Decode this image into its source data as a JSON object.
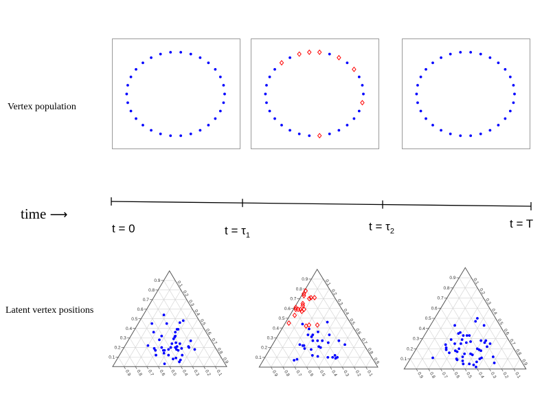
{
  "row_labels": {
    "top": "Vertex population",
    "bottom": "Latent vertex positions"
  },
  "timeline": {
    "axis_label": "time",
    "arrow_icon": "right-arrow",
    "ticks": [
      {
        "label": "t = 0"
      },
      {
        "label": "t = τ",
        "sub": "1"
      },
      {
        "label": "t = τ",
        "sub": "2"
      },
      {
        "label": "t = T"
      }
    ]
  },
  "colors": {
    "normal": "#0000ff",
    "highlight": "#ff0000",
    "grid": "#d0d0d0",
    "axis": "#555555"
  },
  "populations": [
    {
      "count": 30,
      "highlighted_indices": []
    },
    {
      "count": 30,
      "highlighted_indices": [
        3,
        5,
        7,
        8,
        9,
        11,
        23,
        29
      ]
    },
    {
      "count": 30,
      "highlighted_indices": []
    }
  ],
  "ternary_tick_labels": [
    "0.1",
    "0.2",
    "0.3",
    "0.4",
    "0.5",
    "0.6",
    "0.7",
    "0.8",
    "0.9"
  ],
  "chart_data": [
    {
      "type": "scatter",
      "subtype": "ternary",
      "grid": true,
      "points": [
        [
          0.54,
          0.28,
          0.18
        ],
        [
          0.45,
          0.43,
          0.12
        ],
        [
          0.45,
          0.3,
          0.25
        ],
        [
          0.46,
          0.18,
          0.36
        ],
        [
          0.48,
          0.14,
          0.38
        ],
        [
          0.36,
          0.46,
          0.18
        ],
        [
          0.39,
          0.24,
          0.37
        ],
        [
          0.39,
          0.23,
          0.38
        ],
        [
          0.36,
          0.27,
          0.37
        ],
        [
          0.32,
          0.41,
          0.27
        ],
        [
          0.32,
          0.29,
          0.39
        ],
        [
          0.31,
          0.3,
          0.39
        ],
        [
          0.28,
          0.45,
          0.27
        ],
        [
          0.29,
          0.32,
          0.39
        ],
        [
          0.27,
          0.18,
          0.55
        ],
        [
          0.22,
          0.58,
          0.2
        ],
        [
          0.24,
          0.36,
          0.4
        ],
        [
          0.25,
          0.32,
          0.43
        ],
        [
          0.24,
          0.29,
          0.47
        ],
        [
          0.19,
          0.54,
          0.27
        ],
        [
          0.17,
          0.54,
          0.29
        ],
        [
          0.2,
          0.47,
          0.33
        ],
        [
          0.2,
          0.39,
          0.41
        ],
        [
          0.2,
          0.35,
          0.45
        ],
        [
          0.21,
          0.33,
          0.46
        ],
        [
          0.19,
          0.3,
          0.51
        ],
        [
          0.21,
          0.23,
          0.56
        ],
        [
          0.2,
          0.23,
          0.57
        ],
        [
          0.18,
          0.19,
          0.63
        ],
        [
          0.17,
          0.47,
          0.36
        ],
        [
          0.17,
          0.46,
          0.37
        ],
        [
          0.18,
          0.42,
          0.4
        ],
        [
          0.18,
          0.35,
          0.47
        ],
        [
          0.17,
          0.34,
          0.49
        ],
        [
          0.12,
          0.56,
          0.32
        ],
        [
          0.14,
          0.48,
          0.38
        ],
        [
          0.12,
          0.45,
          0.43
        ],
        [
          0.12,
          0.33,
          0.55
        ],
        [
          0.08,
          0.43,
          0.49
        ],
        [
          0.09,
          0.4,
          0.51
        ],
        [
          0.07,
          0.37,
          0.56
        ],
        [
          0.05,
          0.39,
          0.56
        ],
        [
          0.03,
          0.53,
          0.44
        ]
      ],
      "highlighted_points": []
    },
    {
      "type": "scatter",
      "subtype": "ternary",
      "grid": true,
      "points": [
        [
          0.44,
          0.41,
          0.15
        ],
        [
          0.46,
          0.19,
          0.35
        ],
        [
          0.39,
          0.38,
          0.23
        ],
        [
          0.36,
          0.32,
          0.32
        ],
        [
          0.33,
          0.42,
          0.25
        ],
        [
          0.33,
          0.38,
          0.29
        ],
        [
          0.31,
          0.4,
          0.29
        ],
        [
          0.33,
          0.24,
          0.43
        ],
        [
          0.27,
          0.41,
          0.32
        ],
        [
          0.27,
          0.37,
          0.36
        ],
        [
          0.27,
          0.33,
          0.4
        ],
        [
          0.25,
          0.29,
          0.46
        ],
        [
          0.27,
          0.19,
          0.54
        ],
        [
          0.23,
          0.16,
          0.61
        ],
        [
          0.23,
          0.54,
          0.23
        ],
        [
          0.22,
          0.52,
          0.26
        ],
        [
          0.22,
          0.51,
          0.27
        ],
        [
          0.19,
          0.52,
          0.29
        ],
        [
          0.18,
          0.47,
          0.35
        ],
        [
          0.21,
          0.39,
          0.4
        ],
        [
          0.2,
          0.38,
          0.42
        ],
        [
          0.12,
          0.49,
          0.39
        ],
        [
          0.11,
          0.45,
          0.44
        ],
        [
          0.1,
          0.37,
          0.53
        ],
        [
          0.1,
          0.33,
          0.57
        ],
        [
          0.12,
          0.3,
          0.58
        ],
        [
          0.09,
          0.31,
          0.6
        ],
        [
          0.1,
          0.29,
          0.61
        ],
        [
          0.07,
          0.67,
          0.26
        ],
        [
          0.08,
          0.64,
          0.28
        ]
      ],
      "highlighted_points": [
        [
          0.78,
          0.21,
          0.01
        ],
        [
          0.75,
          0.24,
          0.01
        ],
        [
          0.73,
          0.25,
          0.02
        ],
        [
          0.7,
          0.22,
          0.08
        ],
        [
          0.71,
          0.2,
          0.09
        ],
        [
          0.71,
          0.17,
          0.12
        ],
        [
          0.65,
          0.3,
          0.05
        ],
        [
          0.63,
          0.31,
          0.06
        ],
        [
          0.61,
          0.38,
          0.01
        ],
        [
          0.59,
          0.39,
          0.02
        ],
        [
          0.59,
          0.37,
          0.04
        ],
        [
          0.59,
          0.35,
          0.06
        ],
        [
          0.59,
          0.32,
          0.09
        ],
        [
          0.57,
          0.35,
          0.08
        ],
        [
          0.53,
          0.43,
          0.04
        ],
        [
          0.45,
          0.52,
          0.03
        ],
        [
          0.42,
          0.39,
          0.19
        ],
        [
          0.43,
          0.36,
          0.21
        ],
        [
          0.43,
          0.29,
          0.28
        ]
      ]
    },
    {
      "type": "scatter",
      "subtype": "ternary",
      "grid": true,
      "points": [
        [
          0.5,
          0.15,
          0.35
        ],
        [
          0.47,
          0.18,
          0.35
        ],
        [
          0.43,
          0.13,
          0.44
        ],
        [
          0.43,
          0.37,
          0.2
        ],
        [
          0.36,
          0.36,
          0.28
        ],
        [
          0.35,
          0.38,
          0.27
        ],
        [
          0.33,
          0.35,
          0.32
        ],
        [
          0.33,
          0.32,
          0.35
        ],
        [
          0.33,
          0.3,
          0.37
        ],
        [
          0.29,
          0.47,
          0.24
        ],
        [
          0.29,
          0.38,
          0.33
        ],
        [
          0.27,
          0.32,
          0.41
        ],
        [
          0.26,
          0.36,
          0.38
        ],
        [
          0.25,
          0.46,
          0.29
        ],
        [
          0.25,
          0.41,
          0.34
        ],
        [
          0.28,
          0.23,
          0.49
        ],
        [
          0.28,
          0.19,
          0.53
        ],
        [
          0.26,
          0.21,
          0.53
        ],
        [
          0.25,
          0.17,
          0.58
        ],
        [
          0.22,
          0.21,
          0.57
        ],
        [
          0.24,
          0.54,
          0.22
        ],
        [
          0.21,
          0.55,
          0.24
        ],
        [
          0.19,
          0.56,
          0.25
        ],
        [
          0.2,
          0.45,
          0.35
        ],
        [
          0.18,
          0.49,
          0.33
        ],
        [
          0.17,
          0.48,
          0.35
        ],
        [
          0.16,
          0.55,
          0.29
        ],
        [
          0.15,
          0.43,
          0.42
        ],
        [
          0.15,
          0.38,
          0.47
        ],
        [
          0.14,
          0.37,
          0.49
        ],
        [
          0.2,
          0.3,
          0.5
        ],
        [
          0.19,
          0.29,
          0.52
        ],
        [
          0.18,
          0.28,
          0.54
        ],
        [
          0.11,
          0.31,
          0.58
        ],
        [
          0.1,
          0.33,
          0.57
        ],
        [
          0.12,
          0.21,
          0.67
        ],
        [
          0.06,
          0.23,
          0.71
        ],
        [
          0.11,
          0.71,
          0.18
        ],
        [
          0.1,
          0.52,
          0.38
        ],
        [
          0.09,
          0.52,
          0.39
        ],
        [
          0.12,
          0.46,
          0.42
        ],
        [
          0.08,
          0.48,
          0.44
        ],
        [
          0.05,
          0.49,
          0.46
        ],
        [
          0.05,
          0.44,
          0.51
        ],
        [
          0.04,
          0.41,
          0.55
        ],
        [
          0.02,
          0.4,
          0.58
        ],
        [
          0.07,
          0.37,
          0.56
        ]
      ],
      "highlighted_points": []
    }
  ]
}
